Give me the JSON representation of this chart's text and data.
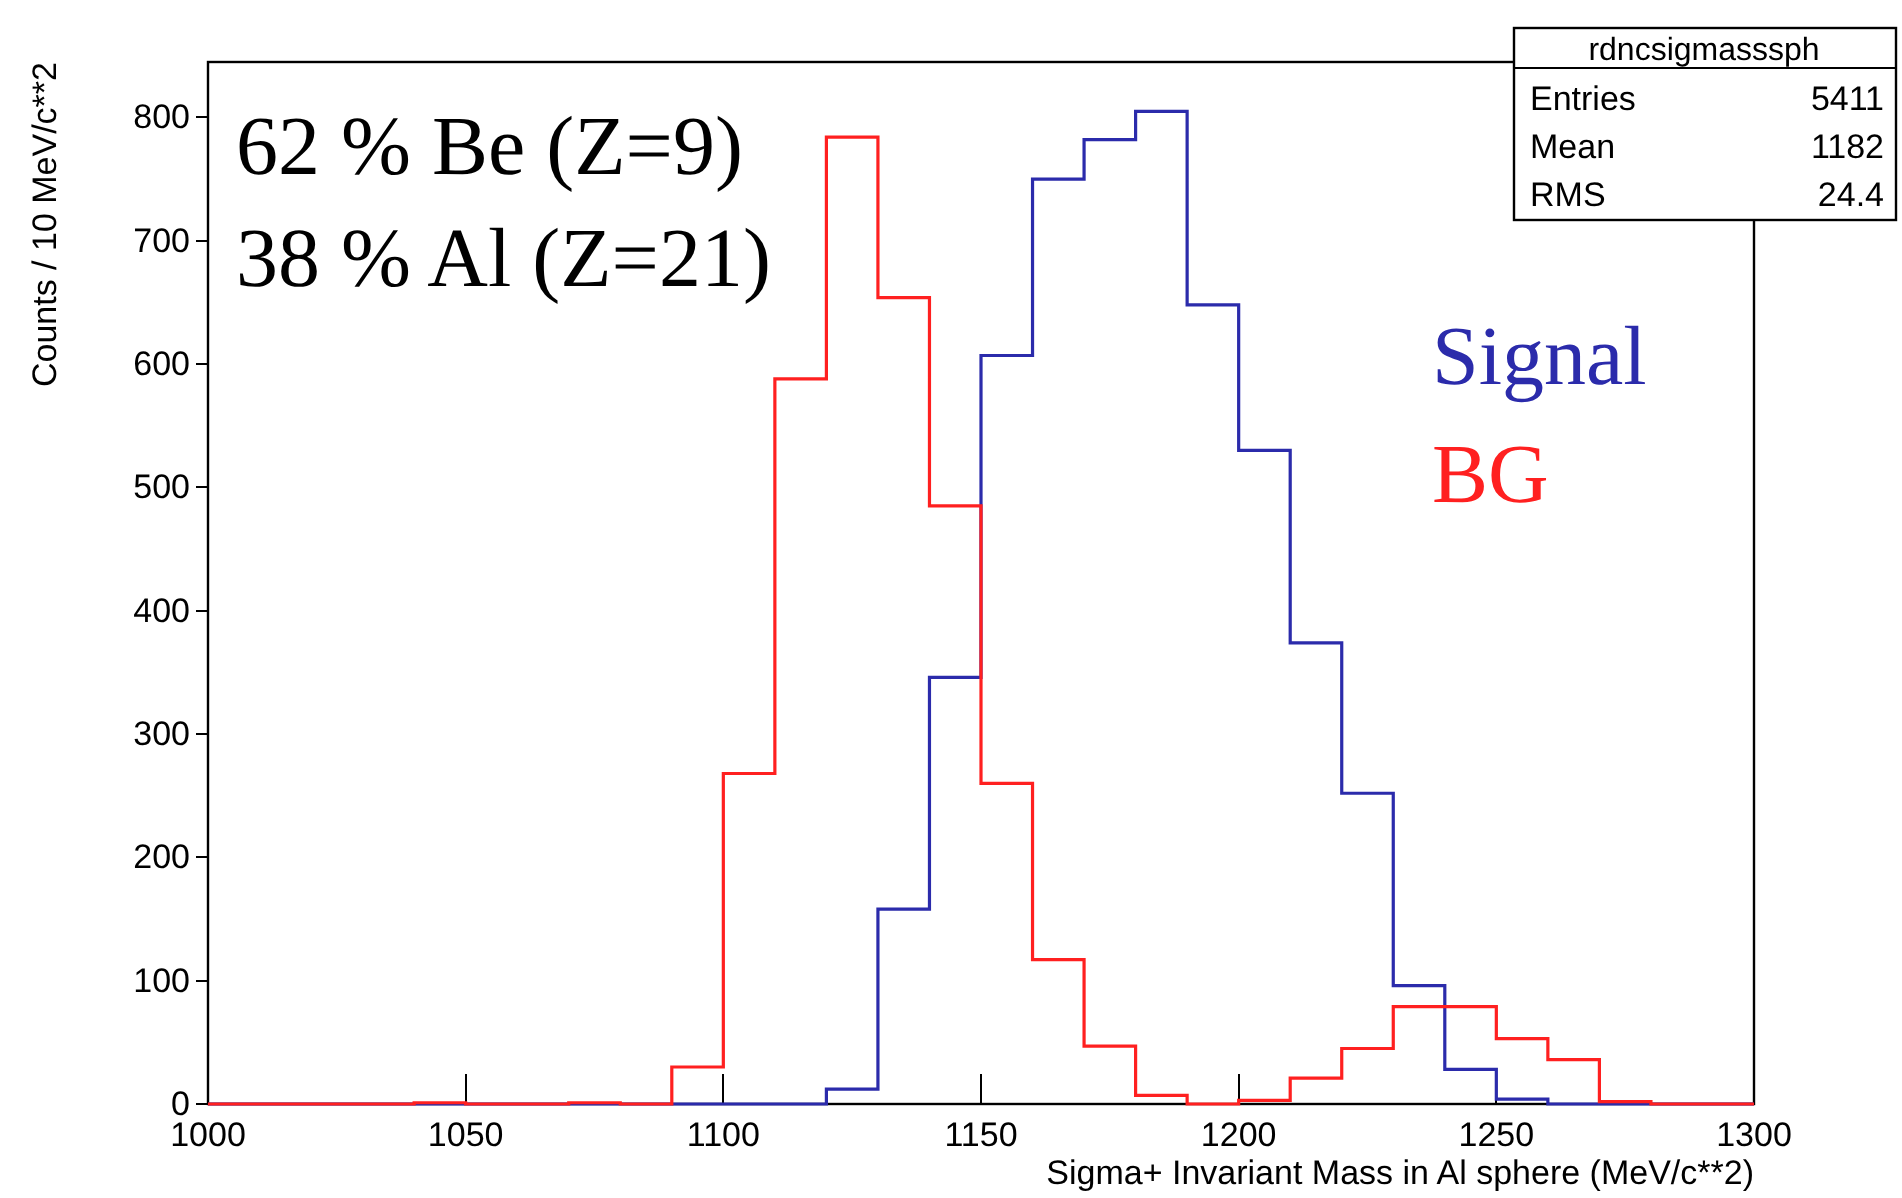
{
  "chart_data": {
    "type": "histogram",
    "xlabel": "Sigma+ Invariant Mass in Al sphere (MeV/c**2)",
    "ylabel": "Counts /  10 MeV/c**2",
    "bins": [
      1000,
      1010,
      1020,
      1030,
      1040,
      1050,
      1060,
      1070,
      1080,
      1090,
      1100,
      1110,
      1120,
      1130,
      1140,
      1150,
      1160,
      1170,
      1180,
      1190,
      1200,
      1210,
      1220,
      1230,
      1240,
      1250,
      1260,
      1270,
      1280,
      1290,
      1300
    ],
    "series": [
      {
        "name": "Signal",
        "color": "#2b2bab",
        "values": [
          0,
          0,
          0,
          0,
          0,
          0,
          0,
          0,
          0,
          0,
          0,
          0,
          12,
          158,
          346,
          607,
          750,
          782,
          805,
          648,
          530,
          374,
          252,
          96,
          28,
          4,
          0,
          0,
          0,
          0
        ]
      },
      {
        "name": "BG",
        "color": "#ff2020",
        "values": [
          0,
          0,
          0,
          0,
          1,
          0,
          0,
          1,
          0,
          30,
          268,
          588,
          784,
          654,
          485,
          260,
          117,
          47,
          7,
          0,
          3,
          21,
          45,
          79,
          79,
          53,
          36,
          2,
          0,
          0
        ]
      }
    ],
    "xlim": [
      1000,
      1300
    ],
    "xticks": [
      1000,
      1050,
      1100,
      1150,
      1200,
      1250,
      1300
    ],
    "ylim": [
      0,
      845
    ],
    "yticks": [
      0,
      100,
      200,
      300,
      400,
      500,
      600,
      700,
      800
    ],
    "legend": "right",
    "annotations": [
      "62 % Be (Z=9)",
      "38 % Al (Z=21)",
      "rdncsigmasssph",
      "Entries",
      "5411",
      "Mean",
      "1182",
      "RMS",
      "24.4"
    ]
  }
}
